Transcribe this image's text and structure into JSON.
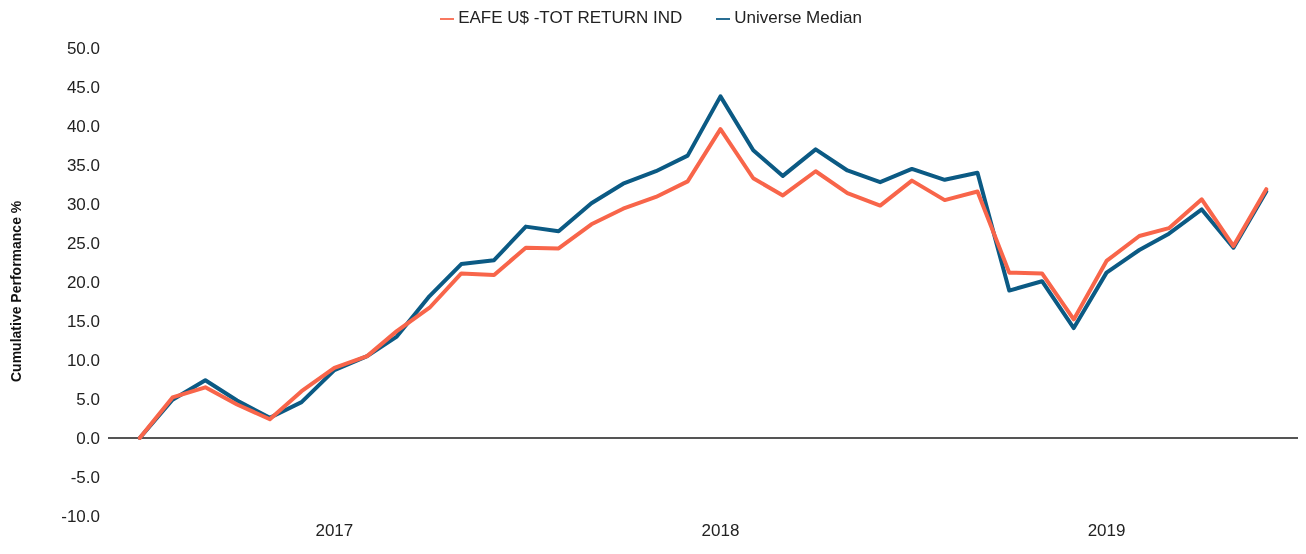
{
  "chart_data": {
    "type": "line",
    "ylabel": "Cumulative Performance %",
    "x": [
      "2016-07",
      "2016-08",
      "2016-09",
      "2016-10",
      "2016-11",
      "2016-12",
      "2017-01",
      "2017-02",
      "2017-03",
      "2017-04",
      "2017-05",
      "2017-06",
      "2017-07",
      "2017-08",
      "2017-09",
      "2017-10",
      "2017-11",
      "2017-12",
      "2018-01",
      "2018-02",
      "2018-03",
      "2018-04",
      "2018-05",
      "2018-06",
      "2018-07",
      "2018-08",
      "2018-09",
      "2018-10",
      "2018-11",
      "2018-12",
      "2019-01",
      "2019-02",
      "2019-03",
      "2019-04",
      "2019-05",
      "2019-06"
    ],
    "series": [
      {
        "name": "Universe Median",
        "color": "#0b5a84",
        "values": [
          0,
          4.9,
          7.4,
          4.8,
          2.6,
          4.6,
          8.7,
          10.5,
          13.0,
          18.2,
          22.3,
          22.8,
          27.1,
          26.5,
          30.1,
          32.6,
          34.2,
          36.2,
          43.8,
          36.9,
          33.6,
          37.0,
          34.3,
          32.8,
          34.5,
          33.1,
          34.0,
          18.9,
          20.1,
          14.1,
          21.2,
          24.1,
          26.2,
          29.3,
          24.4,
          31.6
        ]
      },
      {
        "name": "EAFE U$ -TOT RETURN IND",
        "color": "#f8654a",
        "values": [
          0,
          5.2,
          6.5,
          4.3,
          2.4,
          6.0,
          9.0,
          10.5,
          13.7,
          16.7,
          21.1,
          20.9,
          24.4,
          24.3,
          27.4,
          29.4,
          30.9,
          32.9,
          39.6,
          33.3,
          31.1,
          34.2,
          31.4,
          29.8,
          33.0,
          30.5,
          31.6,
          21.2,
          21.1,
          15.2,
          22.7,
          25.9,
          26.9,
          30.6,
          24.6,
          31.9
        ]
      }
    ],
    "xlim": [
      "2016-06",
      "2019-07"
    ],
    "xticks": [
      {
        "value": "2017-01",
        "label": "2017"
      },
      {
        "value": "2018-01",
        "label": "2018"
      },
      {
        "value": "2019-01",
        "label": "2019"
      }
    ],
    "ylim": [
      -10,
      50
    ],
    "yticks": [
      {
        "value": -10,
        "label": "-10.0"
      },
      {
        "value": -5,
        "label": "-5.0"
      },
      {
        "value": 0,
        "label": "0.0"
      },
      {
        "value": 5,
        "label": "5.0"
      },
      {
        "value": 10,
        "label": "10.0"
      },
      {
        "value": 15,
        "label": "15.0"
      },
      {
        "value": 20,
        "label": "20.0"
      },
      {
        "value": 25,
        "label": "25.0"
      },
      {
        "value": 30,
        "label": "30.0"
      },
      {
        "value": 35,
        "label": "35.0"
      },
      {
        "value": 40,
        "label": "40.0"
      },
      {
        "value": 45,
        "label": "45.0"
      },
      {
        "value": 50,
        "label": "50.0"
      }
    ],
    "ref_lines": [
      {
        "axis": "y",
        "value": 0,
        "color": "#555555"
      }
    ],
    "grid": false,
    "legend": "top",
    "marker": "none",
    "line_style": "solid"
  }
}
